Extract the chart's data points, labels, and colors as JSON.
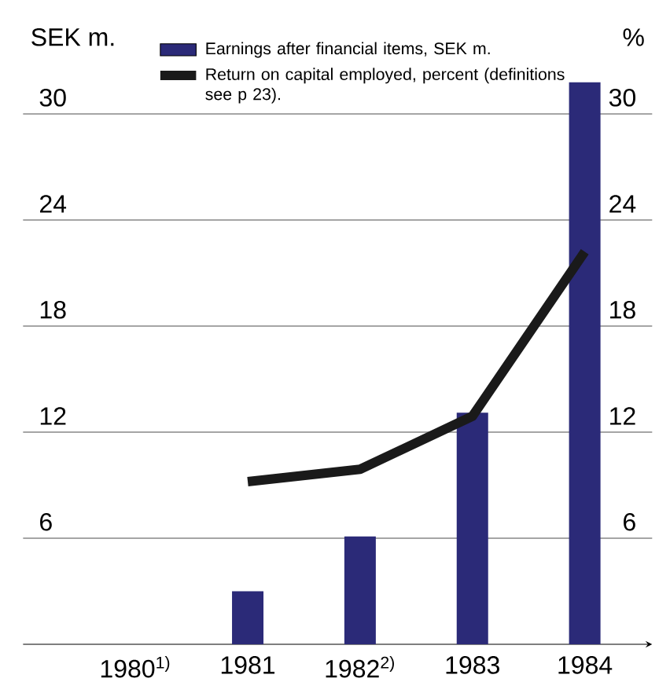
{
  "chart_data": {
    "type": "bar",
    "categories": [
      "1980$^{1)}$",
      "1981",
      "1982$^{2)}$",
      "1983",
      "1984"
    ],
    "series": [
      {
        "name": "Earnings after financial items, SEK m.",
        "color": "#2b2a78",
        "values": [
          null,
          3.0,
          6.1,
          13.1,
          31.8
        ]
      },
      {
        "name": "Return on capital employed, percent (definitions see p 23).",
        "color": "#1a1a1a",
        "type": "line",
        "axis": "y2",
        "values": [
          null,
          9.2,
          9.9,
          12.9,
          22.2
        ]
      }
    ],
    "ylabel": "SEK m.",
    "y2label": "%",
    "ylim": [
      0,
      32
    ],
    "yticks": [
      6,
      12,
      18,
      24,
      30
    ],
    "y2lim": [
      0,
      32
    ],
    "y2ticks": [
      6,
      12,
      18,
      24,
      30
    ],
    "grid": "y",
    "legend": "top"
  }
}
